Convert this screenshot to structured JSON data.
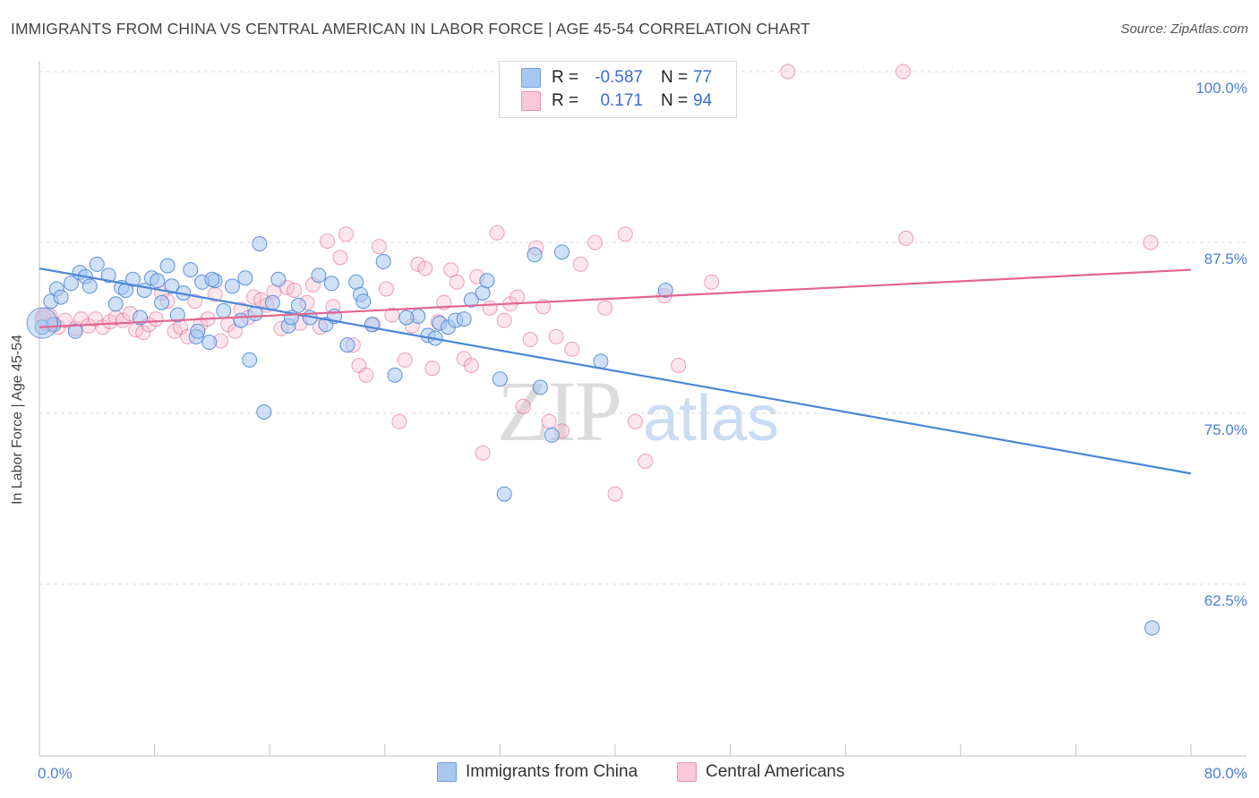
{
  "header": {
    "title": "IMMIGRANTS FROM CHINA VS CENTRAL AMERICAN IN LABOR FORCE | AGE 45-54 CORRELATION CHART",
    "source": "Source: ZipAtlas.com"
  },
  "watermark": {
    "zip": "ZIP",
    "atlas": "atlas"
  },
  "legend": {
    "rows": [
      {
        "r_label": "R =",
        "r_value": "-0.587",
        "n_label": "N =",
        "n_value": "77",
        "color": "#a8c6f0"
      },
      {
        "r_label": "R =",
        "r_value": "0.171",
        "n_label": "N =",
        "n_value": "94",
        "color": "#f6b8cb"
      }
    ]
  },
  "bottom_legend": {
    "items": [
      {
        "label": "Immigrants from China",
        "color": "#a8c6f0"
      },
      {
        "label": "Central Americans",
        "color": "#f6b8cb"
      }
    ]
  },
  "chart_data": {
    "type": "scatter",
    "title": "IMMIGRANTS FROM CHINA VS CENTRAL AMERICAN IN LABOR FORCE | AGE 45-54 CORRELATION CHART",
    "xlabel": "",
    "ylabel": "In Labor Force | Age 45-54",
    "xlim": [
      0,
      80
    ],
    "ylim": [
      51.5,
      101.5
    ],
    "x_tick_labels": [
      "0.0%",
      "80.0%"
    ],
    "y_ticks": [
      62.5,
      75.0,
      87.5,
      100.0
    ],
    "y_tick_labels": [
      "62.5%",
      "75.0%",
      "87.5%",
      "100.0%"
    ],
    "grid": "horizontal dashed",
    "legend_position": "top-center",
    "series": [
      {
        "name": "Immigrants from China",
        "color": "#4a86d8",
        "fill": "#a8c6f0",
        "trend": {
          "x": [
            0,
            80
          ],
          "y": [
            85.6,
            70.6
          ]
        },
        "points": [
          [
            0.2,
            81.3
          ],
          [
            0.8,
            83.2
          ],
          [
            1.2,
            84.1
          ],
          [
            1.5,
            83.5
          ],
          [
            2.2,
            84.5
          ],
          [
            2.8,
            85.3
          ],
          [
            3.2,
            85.0
          ],
          [
            3.5,
            84.3
          ],
          [
            4.0,
            85.9
          ],
          [
            4.8,
            85.1
          ],
          [
            5.3,
            83.0
          ],
          [
            5.7,
            84.2
          ],
          [
            6.5,
            84.8
          ],
          [
            7.0,
            82.0
          ],
          [
            7.3,
            84.0
          ],
          [
            7.8,
            84.9
          ],
          [
            8.2,
            84.7
          ],
          [
            8.5,
            83.1
          ],
          [
            8.9,
            85.8
          ],
          [
            9.2,
            84.3
          ],
          [
            9.6,
            82.2
          ],
          [
            10.0,
            83.8
          ],
          [
            10.5,
            85.5
          ],
          [
            10.9,
            80.6
          ],
          [
            11.3,
            84.6
          ],
          [
            11.8,
            80.2
          ],
          [
            12.2,
            84.7
          ],
          [
            12.8,
            82.5
          ],
          [
            13.4,
            84.3
          ],
          [
            14.0,
            81.8
          ],
          [
            14.3,
            84.9
          ],
          [
            14.6,
            78.9
          ],
          [
            15.3,
            87.4
          ],
          [
            15.6,
            75.1
          ],
          [
            16.2,
            83.1
          ],
          [
            16.6,
            84.8
          ],
          [
            17.3,
            81.4
          ],
          [
            18.0,
            82.9
          ],
          [
            18.8,
            82.0
          ],
          [
            19.4,
            85.1
          ],
          [
            19.9,
            81.5
          ],
          [
            20.3,
            84.5
          ],
          [
            21.4,
            80.0
          ],
          [
            22.0,
            84.6
          ],
          [
            22.3,
            83.7
          ],
          [
            23.1,
            81.5
          ],
          [
            23.9,
            86.1
          ],
          [
            24.7,
            77.8
          ],
          [
            26.3,
            82.1
          ],
          [
            27.0,
            80.7
          ],
          [
            27.8,
            81.6
          ],
          [
            28.4,
            81.3
          ],
          [
            28.9,
            81.8
          ],
          [
            30.0,
            83.3
          ],
          [
            30.8,
            83.8
          ],
          [
            31.1,
            84.7
          ],
          [
            32.0,
            77.5
          ],
          [
            32.3,
            69.1
          ],
          [
            34.4,
            86.6
          ],
          [
            34.8,
            76.9
          ],
          [
            35.6,
            73.4
          ],
          [
            36.3,
            86.8
          ],
          [
            39.0,
            78.8
          ],
          [
            43.5,
            84.0
          ],
          [
            77.3,
            59.3
          ],
          [
            1.0,
            81.5
          ],
          [
            2.5,
            81.0
          ],
          [
            6.0,
            84.0
          ],
          [
            12.0,
            84.8
          ],
          [
            15.0,
            82.3
          ],
          [
            20.5,
            82.1
          ],
          [
            25.5,
            82.0
          ],
          [
            29.5,
            81.9
          ],
          [
            27.5,
            80.5
          ],
          [
            17.5,
            82.0
          ],
          [
            11.0,
            81.0
          ],
          [
            22.5,
            83.2
          ]
        ]
      },
      {
        "name": "Central Americans",
        "color": "#e06690",
        "fill": "#f6b8cb",
        "trend": {
          "x": [
            0,
            80
          ],
          "y": [
            81.3,
            85.5
          ]
        },
        "points": [
          [
            0.3,
            82.0
          ],
          [
            0.8,
            81.5
          ],
          [
            1.3,
            81.3
          ],
          [
            1.8,
            81.8
          ],
          [
            2.5,
            81.2
          ],
          [
            2.9,
            81.9
          ],
          [
            3.4,
            81.4
          ],
          [
            3.9,
            81.9
          ],
          [
            4.4,
            81.3
          ],
          [
            4.9,
            81.7
          ],
          [
            5.3,
            82.0
          ],
          [
            5.8,
            81.8
          ],
          [
            6.3,
            82.3
          ],
          [
            6.7,
            81.1
          ],
          [
            7.2,
            80.9
          ],
          [
            7.6,
            81.5
          ],
          [
            8.1,
            81.9
          ],
          [
            8.5,
            83.8
          ],
          [
            8.9,
            83.2
          ],
          [
            9.4,
            81.0
          ],
          [
            9.8,
            81.3
          ],
          [
            10.3,
            80.6
          ],
          [
            10.8,
            83.2
          ],
          [
            11.2,
            81.5
          ],
          [
            11.7,
            81.9
          ],
          [
            12.2,
            83.7
          ],
          [
            12.6,
            80.3
          ],
          [
            13.1,
            81.5
          ],
          [
            13.6,
            81.0
          ],
          [
            14.0,
            82.6
          ],
          [
            14.5,
            82.0
          ],
          [
            14.9,
            83.5
          ],
          [
            15.4,
            83.3
          ],
          [
            15.8,
            82.9
          ],
          [
            16.3,
            83.9
          ],
          [
            16.8,
            81.2
          ],
          [
            17.2,
            84.2
          ],
          [
            17.7,
            84.0
          ],
          [
            18.1,
            81.6
          ],
          [
            18.6,
            83.1
          ],
          [
            19.0,
            84.4
          ],
          [
            19.5,
            81.3
          ],
          [
            20.0,
            87.6
          ],
          [
            20.4,
            82.8
          ],
          [
            20.9,
            86.4
          ],
          [
            21.3,
            88.1
          ],
          [
            21.8,
            80.0
          ],
          [
            22.2,
            78.5
          ],
          [
            22.7,
            77.8
          ],
          [
            23.2,
            81.5
          ],
          [
            23.6,
            87.2
          ],
          [
            24.1,
            84.1
          ],
          [
            24.5,
            82.2
          ],
          [
            25.0,
            74.4
          ],
          [
            25.4,
            78.9
          ],
          [
            25.9,
            81.4
          ],
          [
            26.3,
            85.9
          ],
          [
            26.8,
            85.6
          ],
          [
            27.3,
            78.3
          ],
          [
            27.7,
            81.7
          ],
          [
            28.1,
            83.1
          ],
          [
            28.6,
            85.5
          ],
          [
            29.0,
            84.6
          ],
          [
            29.5,
            79.0
          ],
          [
            30.0,
            78.5
          ],
          [
            30.4,
            85.0
          ],
          [
            30.8,
            72.1
          ],
          [
            31.3,
            82.7
          ],
          [
            31.8,
            88.2
          ],
          [
            32.3,
            81.8
          ],
          [
            32.7,
            83.0
          ],
          [
            33.2,
            83.5
          ],
          [
            33.6,
            75.5
          ],
          [
            34.1,
            80.4
          ],
          [
            34.5,
            87.1
          ],
          [
            35.0,
            82.8
          ],
          [
            35.4,
            74.4
          ],
          [
            35.9,
            80.6
          ],
          [
            36.3,
            73.7
          ],
          [
            37.0,
            79.7
          ],
          [
            37.6,
            85.9
          ],
          [
            38.6,
            87.5
          ],
          [
            39.3,
            82.7
          ],
          [
            40.0,
            69.1
          ],
          [
            40.7,
            88.1
          ],
          [
            41.4,
            74.4
          ],
          [
            42.1,
            71.5
          ],
          [
            43.4,
            83.6
          ],
          [
            44.4,
            78.5
          ],
          [
            46.7,
            84.6
          ],
          [
            52.0,
            100.0
          ],
          [
            60.0,
            100.0
          ],
          [
            60.2,
            87.8
          ],
          [
            77.2,
            87.5
          ]
        ]
      }
    ]
  }
}
